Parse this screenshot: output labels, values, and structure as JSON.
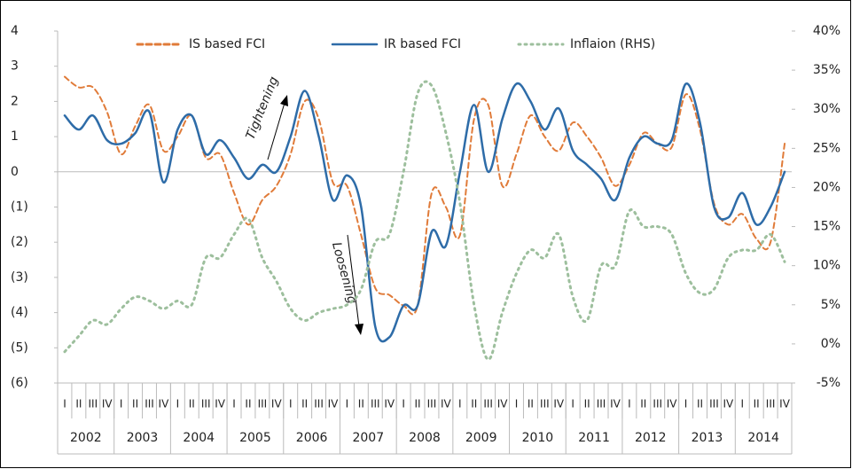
{
  "chart_data": {
    "type": "line",
    "categories": [
      "I",
      "II",
      "III",
      "IV",
      "I",
      "II",
      "III",
      "IV",
      "I",
      "II",
      "III",
      "IV",
      "I",
      "II",
      "III",
      "IV",
      "I",
      "II",
      "III",
      "IV",
      "I",
      "II",
      "III",
      "IV",
      "I",
      "II",
      "III",
      "IV",
      "I",
      "II",
      "III",
      "IV",
      "I",
      "II",
      "III",
      "IV",
      "I",
      "II",
      "III",
      "IV",
      "I",
      "II",
      "III",
      "IV",
      "I",
      "II",
      "III",
      "IV",
      "I",
      "II",
      "III",
      "IV"
    ],
    "years": [
      "2002",
      "2003",
      "2004",
      "2005",
      "2006",
      "2007",
      "2008",
      "2009",
      "2010",
      "2011",
      "2012",
      "2013",
      "2014"
    ],
    "series": [
      {
        "name": "IS based FCI",
        "color": "#e07b39",
        "style": "dashed",
        "values": [
          2.7,
          2.4,
          2.4,
          1.7,
          0.5,
          1.3,
          1.9,
          0.6,
          1.0,
          1.6,
          0.4,
          0.5,
          -0.6,
          -1.5,
          -0.8,
          -0.4,
          0.5,
          2.0,
          1.5,
          -0.3,
          -0.4,
          -1.8,
          -3.3,
          -3.5,
          -3.8,
          -3.8,
          -0.6,
          -1.0,
          -1.8,
          1.5,
          1.9,
          -0.4,
          0.5,
          1.6,
          1.0,
          0.6,
          1.4,
          1.0,
          0.4,
          -0.4,
          0.2,
          1.1,
          0.8,
          0.7,
          2.2,
          1.2,
          -0.9,
          -1.5,
          -1.2,
          -1.9,
          -2.0,
          0.8
        ]
      },
      {
        "name": "IR based FCI",
        "color": "#2e6ca8",
        "style": "solid",
        "values": [
          1.6,
          1.2,
          1.6,
          0.9,
          0.8,
          1.1,
          1.7,
          -0.3,
          1.2,
          1.6,
          0.5,
          0.9,
          0.4,
          -0.2,
          0.2,
          0.0,
          1.0,
          2.3,
          1.0,
          -0.8,
          -0.1,
          -1.0,
          -4.4,
          -4.7,
          -3.8,
          -3.8,
          -1.7,
          -2.1,
          0.0,
          1.9,
          0.0,
          1.5,
          2.5,
          2.0,
          1.2,
          1.8,
          0.6,
          0.2,
          -0.2,
          -0.8,
          0.4,
          1.0,
          0.8,
          0.9,
          2.5,
          1.4,
          -1.0,
          -1.3,
          -0.6,
          -1.5,
          -1.0,
          0.0
        ]
      },
      {
        "name": "Inflaion (RHS)",
        "color": "#9dbf9d",
        "style": "dotted",
        "axis": "y2",
        "values": [
          -1,
          1,
          3,
          2.5,
          4.5,
          6,
          5.5,
          4.5,
          5.5,
          5,
          11,
          11,
          14,
          16,
          11,
          8,
          4.5,
          3,
          4,
          4.5,
          5,
          7,
          13,
          14,
          22,
          32,
          33,
          27,
          18,
          5,
          -2,
          4,
          9,
          12,
          11,
          14,
          6,
          3,
          10,
          10,
          17,
          15,
          15,
          14,
          9,
          6.5,
          7,
          11,
          12,
          12,
          14,
          10.5
        ]
      }
    ],
    "annotations": [
      "Tightening",
      "Loosening"
    ],
    "ylim": [
      -6,
      4
    ],
    "yticks": [
      4,
      3,
      2,
      1,
      0,
      {
        "value": -1,
        "label": "(1)"
      },
      {
        "value": -2,
        "label": "(2)"
      },
      {
        "value": -3,
        "label": "(3)"
      },
      {
        "value": -4,
        "label": "(4)"
      },
      {
        "value": -5,
        "label": "(5)"
      },
      {
        "value": -6,
        "label": "(6)"
      }
    ],
    "y2lim": [
      -5,
      40
    ],
    "y2ticks": [
      {
        "value": -5,
        "label": "-5%"
      },
      {
        "value": 0,
        "label": "0%"
      },
      {
        "value": 5,
        "label": "5%"
      },
      {
        "value": 10,
        "label": "10%"
      },
      {
        "value": 15,
        "label": "15%"
      },
      {
        "value": 20,
        "label": "20%"
      },
      {
        "value": 25,
        "label": "25%"
      },
      {
        "value": 30,
        "label": "30%"
      },
      {
        "value": 35,
        "label": "35%"
      },
      {
        "value": 40,
        "label": "40%"
      }
    ]
  }
}
